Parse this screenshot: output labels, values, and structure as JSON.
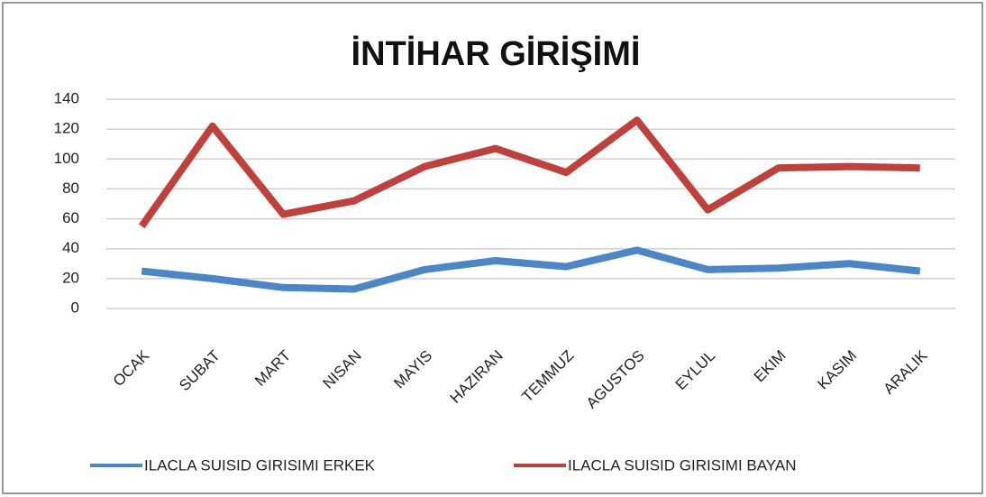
{
  "chart_data": {
    "type": "line",
    "title": "İNTİHAR GİRİŞİMİ",
    "categories": [
      "OCAK",
      "SUBAT",
      "MART",
      "NISAN",
      "MAYIS",
      "HAZIRAN",
      "TEMMUZ",
      "AGUSTOS",
      "EYLUL",
      "EKIM",
      "KASIM",
      "ARALIK"
    ],
    "series": [
      {
        "name": "ILACLA SUISID GIRISIMI ERKEK",
        "color": "#4a86c8",
        "values": [
          25,
          20,
          14,
          13,
          26,
          32,
          28,
          39,
          26,
          27,
          30,
          25
        ]
      },
      {
        "name": "ILACLA SUISID GIRISIMI  BAYAN",
        "color": "#c0403c",
        "values": [
          55,
          122,
          63,
          72,
          95,
          107,
          91,
          126,
          66,
          94,
          95,
          94
        ]
      }
    ],
    "ylim": [
      0,
      140
    ],
    "yticks": [
      0,
      20,
      40,
      60,
      80,
      100,
      120,
      140
    ],
    "grid": true,
    "legend": "bottom"
  }
}
